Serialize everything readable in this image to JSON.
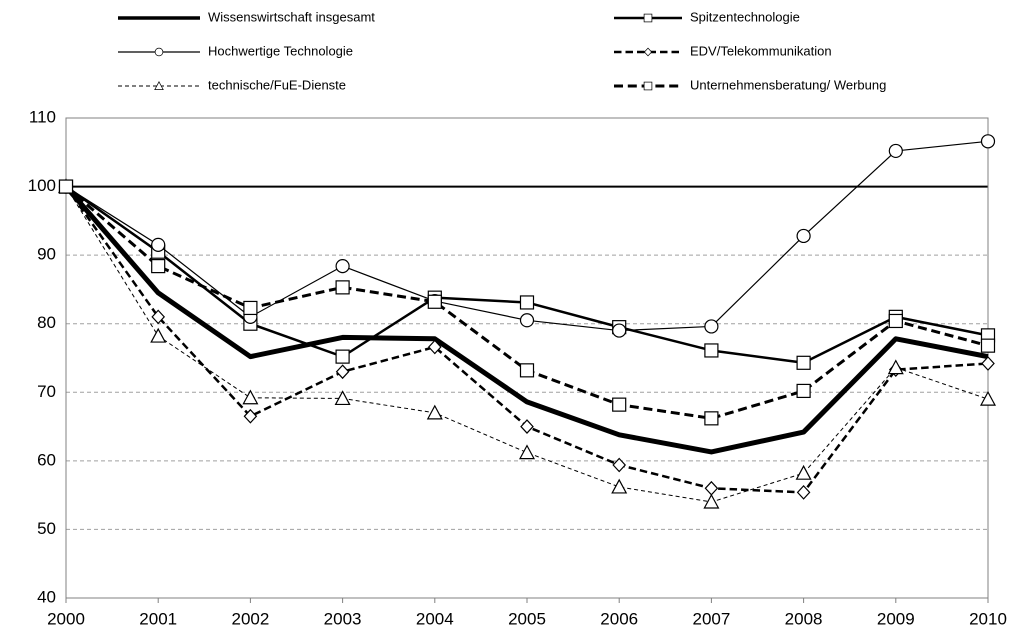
{
  "chart_data": {
    "type": "line",
    "x": [
      2000,
      2001,
      2002,
      2003,
      2004,
      2005,
      2006,
      2007,
      2008,
      2009,
      2010
    ],
    "xlim": [
      2000,
      2010
    ],
    "xticks": [
      2000,
      2001,
      2002,
      2003,
      2004,
      2005,
      2006,
      2007,
      2008,
      2009,
      2010
    ],
    "ylim": [
      40,
      110
    ],
    "yticks": [
      40,
      50,
      60,
      70,
      80,
      90,
      100,
      110
    ],
    "grid": true,
    "reference_line": 100,
    "legend": "top",
    "series": [
      {
        "name": "Wissenswirtschaft insgesamt",
        "color": "#000000",
        "width": 5,
        "dash": "solid",
        "marker": "none",
        "values": [
          100,
          84.5,
          75.2,
          78,
          77.8,
          68.6,
          63.8,
          61.3,
          64.2,
          77.8,
          75.2
        ]
      },
      {
        "name": "Spitzentechnologie",
        "color": "#000000",
        "width": 2.5,
        "dash": "solid",
        "marker": "square",
        "values": [
          100,
          90.5,
          80,
          75.2,
          83.8,
          83.1,
          79.5,
          76.1,
          74.3,
          81,
          78.3
        ]
      },
      {
        "name": "Hochwertige Technologie",
        "color": "#000000",
        "width": 1.2,
        "dash": "solid",
        "marker": "circle",
        "values": [
          100,
          91.5,
          81,
          88.4,
          83.3,
          80.5,
          79,
          79.6,
          92.8,
          105.2,
          106.6
        ]
      },
      {
        "name": "EDV/Telekommunikation",
        "color": "#000000",
        "width": 2.5,
        "dash": "dashed",
        "marker": "diamond",
        "values": [
          100,
          81,
          66.5,
          73,
          76.6,
          65,
          59.4,
          56,
          55.4,
          73.3,
          74.2
        ]
      },
      {
        "name": "technische/FuE-Dienste",
        "color": "#000000",
        "width": 1,
        "dash": "dotted",
        "marker": "triangle",
        "values": [
          100,
          78.2,
          69.2,
          69.1,
          67,
          61.2,
          56.2,
          54,
          58.2,
          73.6,
          69
        ]
      },
      {
        "name": "Unternehmensberatung/ Werbung",
        "color": "#000000",
        "width": 3,
        "dash": "dashed",
        "marker": "square",
        "values": [
          100,
          88.4,
          82.3,
          85.3,
          83.2,
          73.2,
          68.2,
          66.2,
          70.2,
          80.4,
          76.8
        ]
      }
    ]
  }
}
